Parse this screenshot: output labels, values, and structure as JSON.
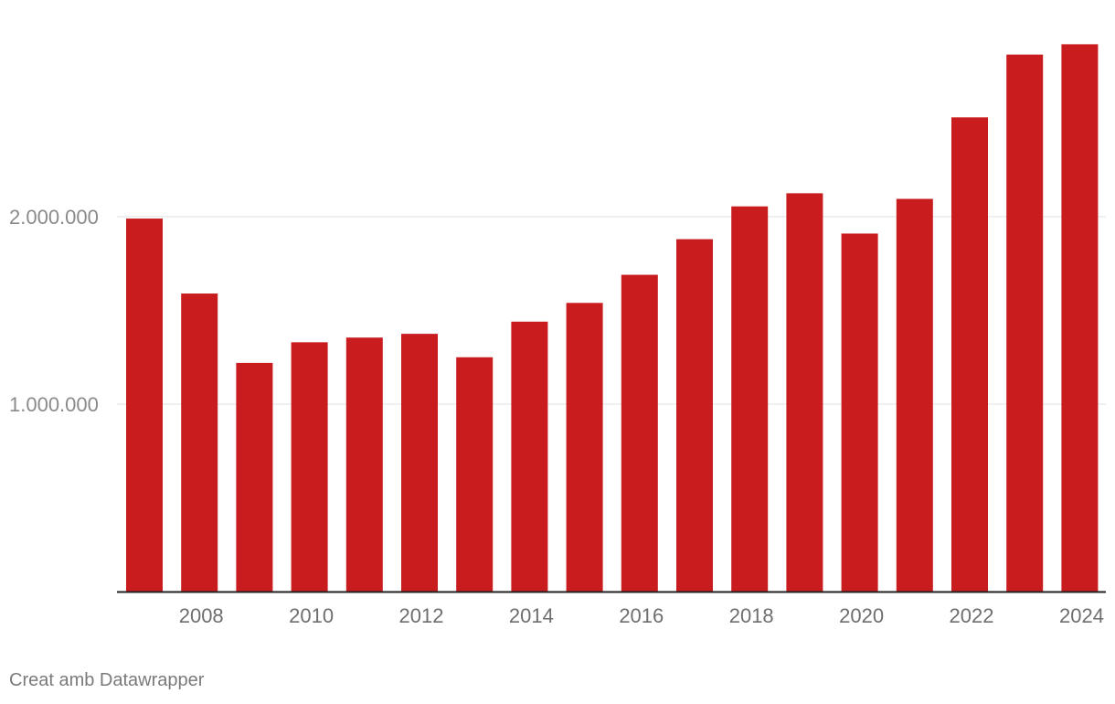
{
  "chart_data": {
    "type": "bar",
    "categories": [
      "2007",
      "2008",
      "2009",
      "2010",
      "2011",
      "2012",
      "2013",
      "2014",
      "2015",
      "2016",
      "2017",
      "2018",
      "2019",
      "2020",
      "2021",
      "2022",
      "2023",
      "2024"
    ],
    "x_tick_labels": [
      "2008",
      "2010",
      "2012",
      "2014",
      "2016",
      "2018",
      "2020",
      "2022",
      "2024"
    ],
    "values": [
      1990000,
      1590000,
      1220000,
      1330000,
      1355000,
      1375000,
      1250000,
      1440000,
      1540000,
      1690000,
      1880000,
      2055000,
      2125000,
      1910000,
      2095000,
      2530000,
      2865000,
      2920000
    ],
    "ylim": [
      0,
      3000000
    ],
    "y_ticks": [
      {
        "value": 1000000,
        "label": "1.000.000"
      },
      {
        "value": 2000000,
        "label": "2.000.000"
      }
    ],
    "grid": true,
    "bar_color": "#c81c1e",
    "title": "",
    "xlabel": "",
    "ylabel": ""
  },
  "footer": {
    "credit": "Creat amb Datawrapper"
  }
}
